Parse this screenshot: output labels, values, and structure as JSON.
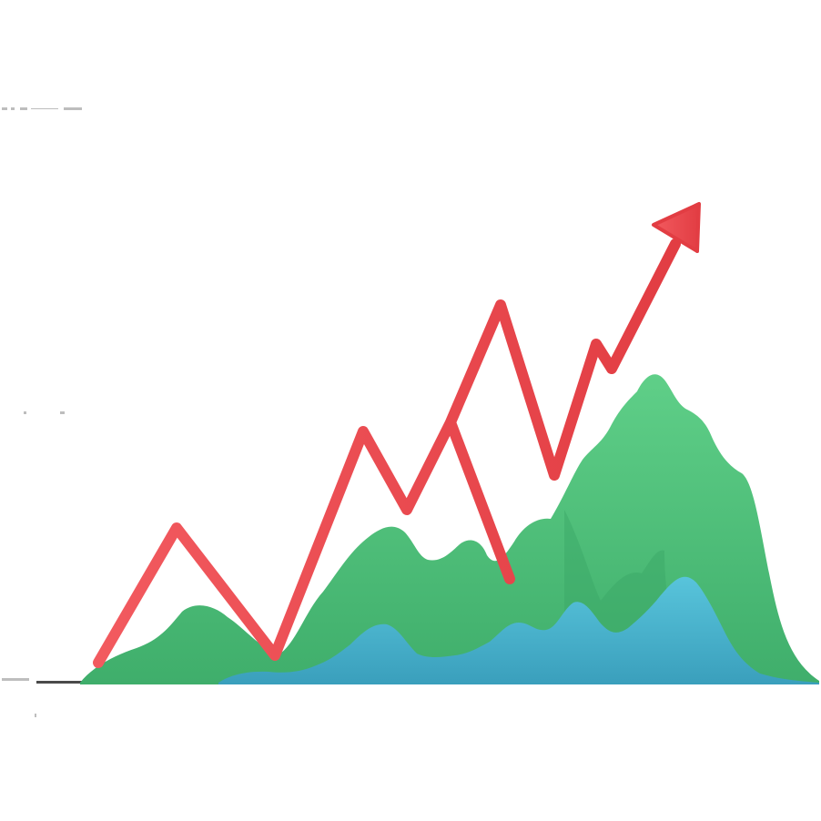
{
  "illustration": {
    "subject": "3d-rising-trend-chart-icon",
    "colors": {
      "background": "#ffffff",
      "green_area": "#4cbf79",
      "green_area_shadow": "#3aa765",
      "blue_area": "#45b6cf",
      "blue_area_shadow": "#3a9fbc",
      "arrow": "#ef4a4f",
      "arrow_shadow": "#cf3036",
      "baseline": "#2a2a2a"
    },
    "icons": [
      "upward-trend-arrow-icon",
      "green-mountain-area",
      "blue-mountain-area"
    ]
  }
}
